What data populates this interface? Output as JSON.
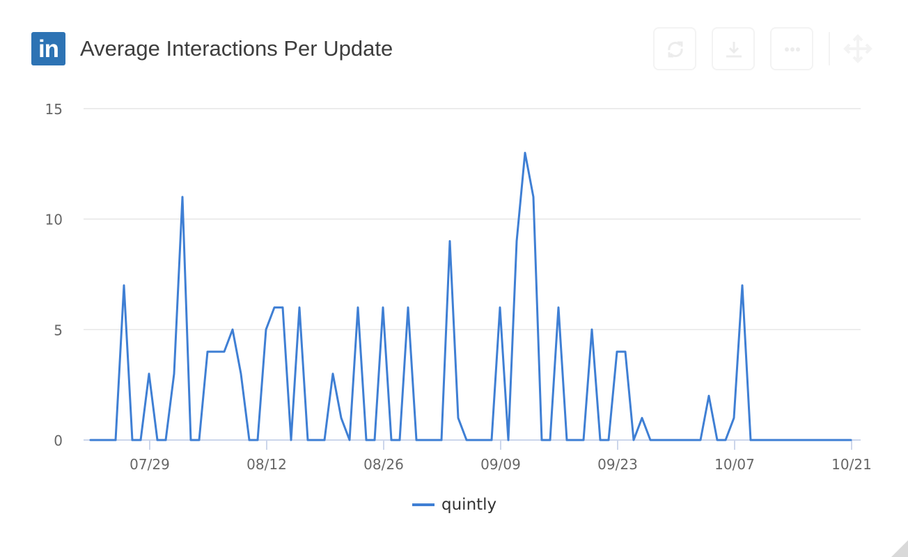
{
  "header": {
    "logo_text": "in",
    "title": "Average Interactions Per Update",
    "buttons": [
      {
        "name": "refresh-button",
        "icon": "refresh-icon"
      },
      {
        "name": "download-button",
        "icon": "download-icon"
      },
      {
        "name": "more-options-button",
        "icon": "more-horizontal-icon"
      }
    ],
    "drag_handle_icon": "move-icon"
  },
  "legend": {
    "label": "quintly",
    "color": "#3f7fd4"
  },
  "colors": {
    "series": "#3f7fd4",
    "grid": "#e6e6e6",
    "axis": "#ccd6eb",
    "text": "#666666",
    "title": "#3d3d3d",
    "brand": "#2d73b4"
  },
  "chart_data": {
    "type": "line",
    "title": "Average Interactions Per Update",
    "xlabel": "",
    "ylabel": "",
    "ylim": [
      0,
      15
    ],
    "yticks": [
      0,
      5,
      10,
      15
    ],
    "xticks": [
      "07/29",
      "08/12",
      "08/26",
      "09/09",
      "09/23",
      "10/07",
      "10/21"
    ],
    "x_start": "07/22",
    "x_end": "10/21",
    "grid": true,
    "legend_position": "bottom",
    "series": [
      {
        "name": "quintly",
        "values": [
          0,
          0,
          0,
          0,
          7,
          0,
          0,
          3,
          0,
          0,
          3,
          11,
          0,
          0,
          4,
          4,
          4,
          5,
          3,
          0,
          0,
          5,
          6,
          6,
          0,
          6,
          0,
          0,
          0,
          3,
          1,
          0,
          6,
          0,
          0,
          6,
          0,
          0,
          6,
          0,
          0,
          0,
          0,
          9,
          1,
          0,
          0,
          0,
          0,
          6,
          0,
          9,
          13,
          11,
          0,
          0,
          6,
          0,
          0,
          0,
          5,
          0,
          0,
          4,
          4,
          0,
          1,
          0,
          0,
          0,
          0,
          0,
          0,
          0,
          2,
          0,
          0,
          1,
          7,
          0,
          0,
          0,
          0,
          0,
          0,
          0,
          0,
          0,
          0,
          0,
          0,
          0
        ]
      }
    ]
  }
}
